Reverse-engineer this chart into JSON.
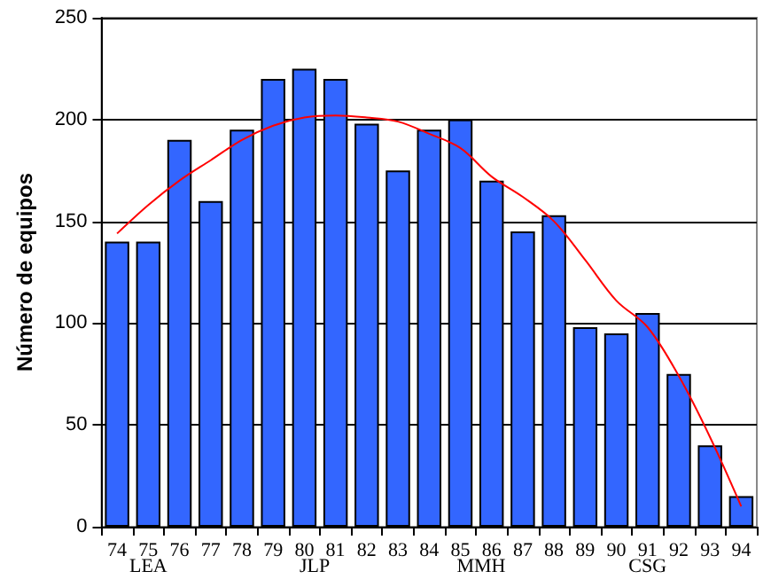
{
  "chart_data": {
    "type": "bar",
    "ylabel": "Número de equipos",
    "categories": [
      "74",
      "75",
      "76",
      "77",
      "78",
      "79",
      "80",
      "81",
      "82",
      "83",
      "84",
      "85",
      "86",
      "87",
      "88",
      "89",
      "90",
      "91",
      "92",
      "93",
      "94"
    ],
    "series": [
      {
        "color": "#3366ff",
        "values": [
          140,
          140,
          190,
          160,
          195,
          220,
          225,
          220,
          198,
          175,
          195,
          200,
          170,
          145,
          153,
          98,
          95,
          105,
          75,
          40,
          15
        ]
      },
      {
        "type": "line",
        "color": "#ff0000",
        "marker": "none",
        "x": [
          "74",
          "75",
          "76",
          "77",
          "78",
          "79",
          "80",
          "81",
          "82",
          "83",
          "84",
          "85",
          "86",
          "87",
          "88",
          "89",
          "90",
          "91",
          "92",
          "93",
          "94"
        ],
        "values": [
          144,
          158,
          170,
          180,
          190,
          197,
          201,
          202,
          201,
          199,
          193,
          186,
          172,
          162,
          150,
          131,
          111,
          98,
          74,
          44,
          10
        ]
      }
    ],
    "ylim": [
      0,
      250
    ],
    "yticks": [
      0,
      50,
      100,
      150,
      200,
      250
    ],
    "grid": "y",
    "annotations": [
      "LEA",
      "JLP",
      "MMH",
      "CSG"
    ]
  }
}
